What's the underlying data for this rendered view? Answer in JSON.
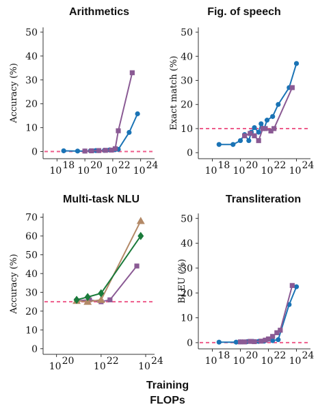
{
  "figure": {
    "xlabel_line1": "Training",
    "xlabel_line2": "FLOPs"
  },
  "colors": {
    "blue": "#1a73b5",
    "purple": "#8a5a94",
    "brown": "#b38967",
    "green": "#1a7a3a",
    "reference": "#ee5b8a"
  },
  "chart_data": [
    {
      "type": "line",
      "title": "Arithmetics",
      "xlabel": "",
      "ylabel": "Accuracy (%)",
      "x_scale": "log10",
      "xlim": [
        1e+17,
        1e+25
      ],
      "ylim": [
        -3,
        52
      ],
      "x_ticks": [
        1e+18,
        1e+20,
        1e+22,
        1e+24
      ],
      "x_tick_labels": [
        "10",
        "10",
        "10",
        "10"
      ],
      "x_tick_exps": [
        "18",
        "20",
        "22",
        "24"
      ],
      "y_ticks": [
        0,
        10,
        20,
        30,
        40,
        50
      ],
      "y_tick_labels": [
        "0",
        "10",
        "20",
        "30",
        "40",
        "50"
      ],
      "reference_line": 0,
      "series": [
        {
          "color": "#1a73b5",
          "marker": "circle",
          "x": [
            3e+18,
            3e+19,
            1e+20,
            2.5e+20,
            6e+20,
            1e+21,
            2.5e+21,
            6e+21,
            1.5e+22,
            2.5e+22,
            1.5e+23,
            6e+23
          ],
          "y": [
            0.3,
            0.2,
            0.2,
            0.3,
            0.4,
            0.4,
            0.5,
            0.7,
            0.8,
            0.9,
            8,
            15.8
          ]
        },
        {
          "color": "#8a5a94",
          "marker": "square",
          "x": [
            1e+20,
            3e+20,
            1e+21,
            3e+21,
            8e+21,
            1.5e+22,
            2.5e+22,
            2.5e+23
          ],
          "y": [
            0.2,
            0.3,
            0.4,
            0.5,
            0.6,
            1.2,
            8.7,
            33
          ]
        }
      ]
    },
    {
      "type": "line",
      "title": "Fig. of speech",
      "xlabel": "",
      "ylabel": "Exact match (%)",
      "x_scale": "log10",
      "xlim": [
        1e+17,
        1e+25
      ],
      "ylim": [
        -2.5,
        52
      ],
      "x_ticks": [
        1e+18,
        1e+20,
        1e+22,
        1e+24
      ],
      "x_tick_labels": [
        "10",
        "10",
        "10",
        "10"
      ],
      "x_tick_exps": [
        "18",
        "20",
        "22",
        "24"
      ],
      "y_ticks": [
        0,
        10,
        20,
        30,
        40,
        50
      ],
      "y_tick_labels": [
        "0",
        "10",
        "20",
        "30",
        "40",
        "50"
      ],
      "reference_line": 10,
      "series": [
        {
          "color": "#1a73b5",
          "marker": "circle",
          "x": [
            3e+18,
            3e+19,
            1e+20,
            2e+20,
            4e+20,
            6e+20,
            1e+21,
            2e+21,
            3e+21,
            5e+21,
            8e+21,
            2e+22,
            5e+22,
            3e+23,
            1e+24
          ],
          "y": [
            3.4,
            3.4,
            5,
            7.5,
            5,
            8.5,
            10.4,
            8.5,
            12,
            10,
            13.5,
            15,
            20,
            27,
            37
          ]
        },
        {
          "color": "#8a5a94",
          "marker": "square",
          "x": [
            2e+20,
            5e+20,
            1e+21,
            2e+21,
            4e+21,
            6e+21,
            1.5e+22,
            2.5e+22,
            5e+23
          ],
          "y": [
            7,
            8,
            7,
            5,
            10,
            10,
            9,
            10,
            27
          ]
        }
      ]
    },
    {
      "type": "line",
      "title": "Multi-task NLU",
      "xlabel": "",
      "ylabel": "Accuracy (%)",
      "x_scale": "log10",
      "xlim": [
        2.5e+19,
        2.5e+24
      ],
      "ylim": [
        -3,
        72
      ],
      "x_ticks": [
        1e+20,
        1e+22,
        1e+24
      ],
      "x_tick_labels": [
        "10",
        "10",
        "10"
      ],
      "x_tick_exps": [
        "20",
        "22",
        "24"
      ],
      "y_ticks": [
        0,
        10,
        20,
        30,
        40,
        50,
        60,
        70
      ],
      "y_tick_labels": [
        "0",
        "10",
        "20",
        "30",
        "40",
        "50",
        "60",
        "70"
      ],
      "reference_line": 25,
      "series": [
        {
          "color": "#8a5a94",
          "marker": "square",
          "x": [
            8e+20,
            3e+21,
            1e+22,
            2.5e+22,
            4e+23
          ],
          "y": [
            25.5,
            26,
            25,
            26,
            44
          ]
        },
        {
          "color": "#b38967",
          "marker": "triangle",
          "x": [
            8e+20,
            2.5e+21,
            1e+22,
            6e+23
          ],
          "y": [
            25.5,
            25,
            26,
            68
          ]
        },
        {
          "color": "#1a7a3a",
          "marker": "diamond",
          "x": [
            8e+20,
            2.5e+21,
            1e+22,
            6e+23
          ],
          "y": [
            26,
            27.5,
            29.5,
            60
          ]
        }
      ]
    },
    {
      "type": "line",
      "title": "Transliteration",
      "xlabel": "",
      "ylabel": "BLEU (%)",
      "x_scale": "log10",
      "xlim": [
        1e+17,
        1e+25
      ],
      "ylim": [
        -2.5,
        52
      ],
      "x_ticks": [
        1e+18,
        1e+20,
        1e+22,
        1e+24
      ],
      "x_tick_labels": [
        "10",
        "10",
        "10",
        "10"
      ],
      "x_tick_exps": [
        "18",
        "20",
        "22",
        "24"
      ],
      "y_ticks": [
        0,
        10,
        20,
        30,
        40,
        50
      ],
      "y_tick_labels": [
        "0",
        "10",
        "20",
        "30",
        "40",
        "50"
      ],
      "reference_line": 0,
      "series": [
        {
          "color": "#1a73b5",
          "marker": "circle",
          "x": [
            3e+18,
            5e+19,
            1e+20,
            3e+20,
            8e+20,
            2e+21,
            5e+21,
            2e+22,
            5e+22,
            3e+23,
            1e+24
          ],
          "y": [
            0.2,
            0.2,
            0.3,
            0.4,
            0.5,
            0.5,
            0.6,
            0.8,
            1.2,
            15.3,
            22.5
          ]
        },
        {
          "color": "#8a5a94",
          "marker": "square",
          "x": [
            1e+20,
            2e+20,
            5e+20,
            1e+21,
            3e+21,
            6e+21,
            1e+22,
            2e+22,
            4e+22,
            7e+22,
            5e+23
          ],
          "y": [
            0.3,
            0.3,
            0.5,
            0.4,
            0.6,
            1,
            1.5,
            2.5,
            4,
            5,
            23
          ]
        }
      ]
    }
  ]
}
